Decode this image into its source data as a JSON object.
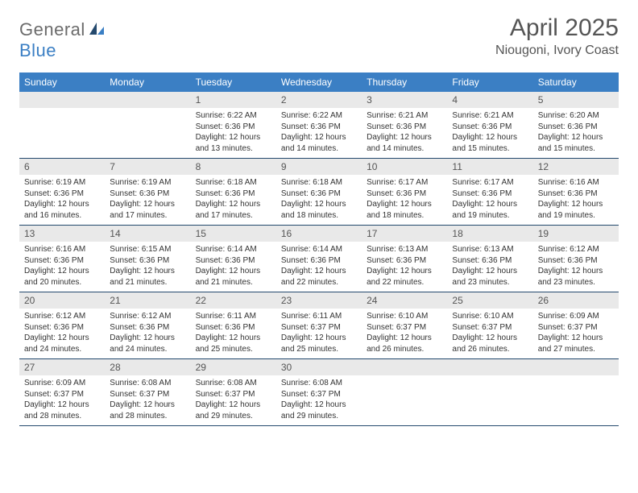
{
  "brand": {
    "part1": "General",
    "part2": "Blue"
  },
  "title": "April 2025",
  "location": "Niougoni, Ivory Coast",
  "theme": {
    "header_bg": "#3b7fc4",
    "header_text": "#ffffff",
    "border_color": "#24496d",
    "daynum_bg": "#e9e9e9",
    "daynum_color": "#555555",
    "body_text": "#333333",
    "title_color": "#555555",
    "month_fontsize": 30,
    "location_fontsize": 16,
    "th_fontsize": 12,
    "daynum_fontsize": 12,
    "cell_fontsize": 10
  },
  "columns": [
    "Sunday",
    "Monday",
    "Tuesday",
    "Wednesday",
    "Thursday",
    "Friday",
    "Saturday"
  ],
  "weeks": [
    [
      null,
      null,
      {
        "n": "1",
        "sunrise": "6:22 AM",
        "sunset": "6:36 PM",
        "daylight": "12 hours and 13 minutes."
      },
      {
        "n": "2",
        "sunrise": "6:22 AM",
        "sunset": "6:36 PM",
        "daylight": "12 hours and 14 minutes."
      },
      {
        "n": "3",
        "sunrise": "6:21 AM",
        "sunset": "6:36 PM",
        "daylight": "12 hours and 14 minutes."
      },
      {
        "n": "4",
        "sunrise": "6:21 AM",
        "sunset": "6:36 PM",
        "daylight": "12 hours and 15 minutes."
      },
      {
        "n": "5",
        "sunrise": "6:20 AM",
        "sunset": "6:36 PM",
        "daylight": "12 hours and 15 minutes."
      }
    ],
    [
      {
        "n": "6",
        "sunrise": "6:19 AM",
        "sunset": "6:36 PM",
        "daylight": "12 hours and 16 minutes."
      },
      {
        "n": "7",
        "sunrise": "6:19 AM",
        "sunset": "6:36 PM",
        "daylight": "12 hours and 17 minutes."
      },
      {
        "n": "8",
        "sunrise": "6:18 AM",
        "sunset": "6:36 PM",
        "daylight": "12 hours and 17 minutes."
      },
      {
        "n": "9",
        "sunrise": "6:18 AM",
        "sunset": "6:36 PM",
        "daylight": "12 hours and 18 minutes."
      },
      {
        "n": "10",
        "sunrise": "6:17 AM",
        "sunset": "6:36 PM",
        "daylight": "12 hours and 18 minutes."
      },
      {
        "n": "11",
        "sunrise": "6:17 AM",
        "sunset": "6:36 PM",
        "daylight": "12 hours and 19 minutes."
      },
      {
        "n": "12",
        "sunrise": "6:16 AM",
        "sunset": "6:36 PM",
        "daylight": "12 hours and 19 minutes."
      }
    ],
    [
      {
        "n": "13",
        "sunrise": "6:16 AM",
        "sunset": "6:36 PM",
        "daylight": "12 hours and 20 minutes."
      },
      {
        "n": "14",
        "sunrise": "6:15 AM",
        "sunset": "6:36 PM",
        "daylight": "12 hours and 21 minutes."
      },
      {
        "n": "15",
        "sunrise": "6:14 AM",
        "sunset": "6:36 PM",
        "daylight": "12 hours and 21 minutes."
      },
      {
        "n": "16",
        "sunrise": "6:14 AM",
        "sunset": "6:36 PM",
        "daylight": "12 hours and 22 minutes."
      },
      {
        "n": "17",
        "sunrise": "6:13 AM",
        "sunset": "6:36 PM",
        "daylight": "12 hours and 22 minutes."
      },
      {
        "n": "18",
        "sunrise": "6:13 AM",
        "sunset": "6:36 PM",
        "daylight": "12 hours and 23 minutes."
      },
      {
        "n": "19",
        "sunrise": "6:12 AM",
        "sunset": "6:36 PM",
        "daylight": "12 hours and 23 minutes."
      }
    ],
    [
      {
        "n": "20",
        "sunrise": "6:12 AM",
        "sunset": "6:36 PM",
        "daylight": "12 hours and 24 minutes."
      },
      {
        "n": "21",
        "sunrise": "6:12 AM",
        "sunset": "6:36 PM",
        "daylight": "12 hours and 24 minutes."
      },
      {
        "n": "22",
        "sunrise": "6:11 AM",
        "sunset": "6:36 PM",
        "daylight": "12 hours and 25 minutes."
      },
      {
        "n": "23",
        "sunrise": "6:11 AM",
        "sunset": "6:37 PM",
        "daylight": "12 hours and 25 minutes."
      },
      {
        "n": "24",
        "sunrise": "6:10 AM",
        "sunset": "6:37 PM",
        "daylight": "12 hours and 26 minutes."
      },
      {
        "n": "25",
        "sunrise": "6:10 AM",
        "sunset": "6:37 PM",
        "daylight": "12 hours and 26 minutes."
      },
      {
        "n": "26",
        "sunrise": "6:09 AM",
        "sunset": "6:37 PM",
        "daylight": "12 hours and 27 minutes."
      }
    ],
    [
      {
        "n": "27",
        "sunrise": "6:09 AM",
        "sunset": "6:37 PM",
        "daylight": "12 hours and 28 minutes."
      },
      {
        "n": "28",
        "sunrise": "6:08 AM",
        "sunset": "6:37 PM",
        "daylight": "12 hours and 28 minutes."
      },
      {
        "n": "29",
        "sunrise": "6:08 AM",
        "sunset": "6:37 PM",
        "daylight": "12 hours and 29 minutes."
      },
      {
        "n": "30",
        "sunrise": "6:08 AM",
        "sunset": "6:37 PM",
        "daylight": "12 hours and 29 minutes."
      },
      null,
      null,
      null
    ]
  ],
  "labels": {
    "sunrise": "Sunrise:",
    "sunset": "Sunset:",
    "daylight": "Daylight:"
  }
}
